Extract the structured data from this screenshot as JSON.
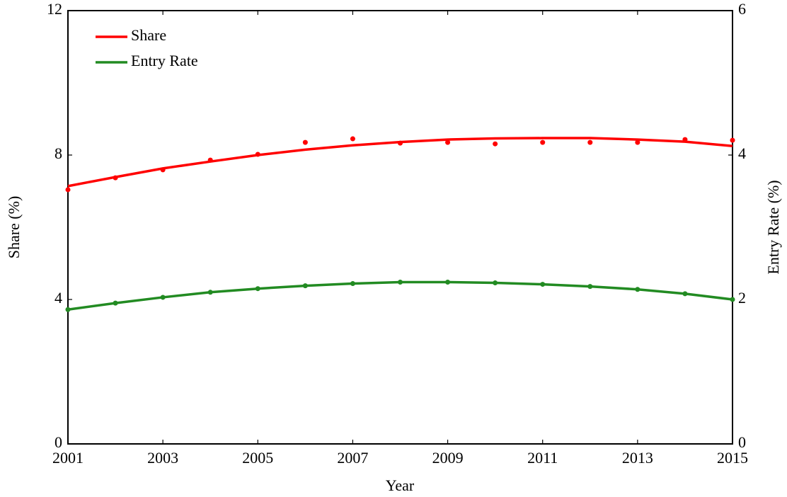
{
  "chart_data": {
    "type": "line",
    "x": [
      2001,
      2002,
      2003,
      2004,
      2005,
      2006,
      2007,
      2008,
      2009,
      2010,
      2011,
      2012,
      2013,
      2014,
      2015
    ],
    "xlabel": "Year",
    "ylabel": "Share (%)",
    "y2label": "Entry Rate (%)",
    "xlim": [
      2001,
      2015
    ],
    "xticks": [
      2001,
      2003,
      2005,
      2007,
      2009,
      2011,
      2013,
      2015
    ],
    "ylim": [
      0,
      12
    ],
    "yticks": [
      0,
      4,
      8,
      12
    ],
    "y2lim": [
      0,
      6
    ],
    "y2ticks": [
      0,
      2,
      4,
      6
    ],
    "legend": "upper left",
    "series": [
      {
        "name": "Share",
        "color": "#ff0000",
        "axis": "y",
        "values": [
          7.14,
          7.39,
          7.63,
          7.82,
          8.0,
          8.15,
          8.27,
          8.36,
          8.43,
          8.46,
          8.47,
          8.47,
          8.43,
          8.37,
          8.25
        ],
        "points": [
          7.04,
          7.37,
          7.59,
          7.86,
          8.02,
          8.35,
          8.45,
          8.33,
          8.35,
          8.31,
          8.35,
          8.35,
          8.35,
          8.43,
          8.41
        ]
      },
      {
        "name": "Entry Rate",
        "color": "#228b22",
        "axis": "y2",
        "values": [
          1.86,
          1.95,
          2.03,
          2.1,
          2.15,
          2.19,
          2.22,
          2.24,
          2.24,
          2.23,
          2.21,
          2.18,
          2.14,
          2.08,
          2.0
        ]
      }
    ]
  }
}
